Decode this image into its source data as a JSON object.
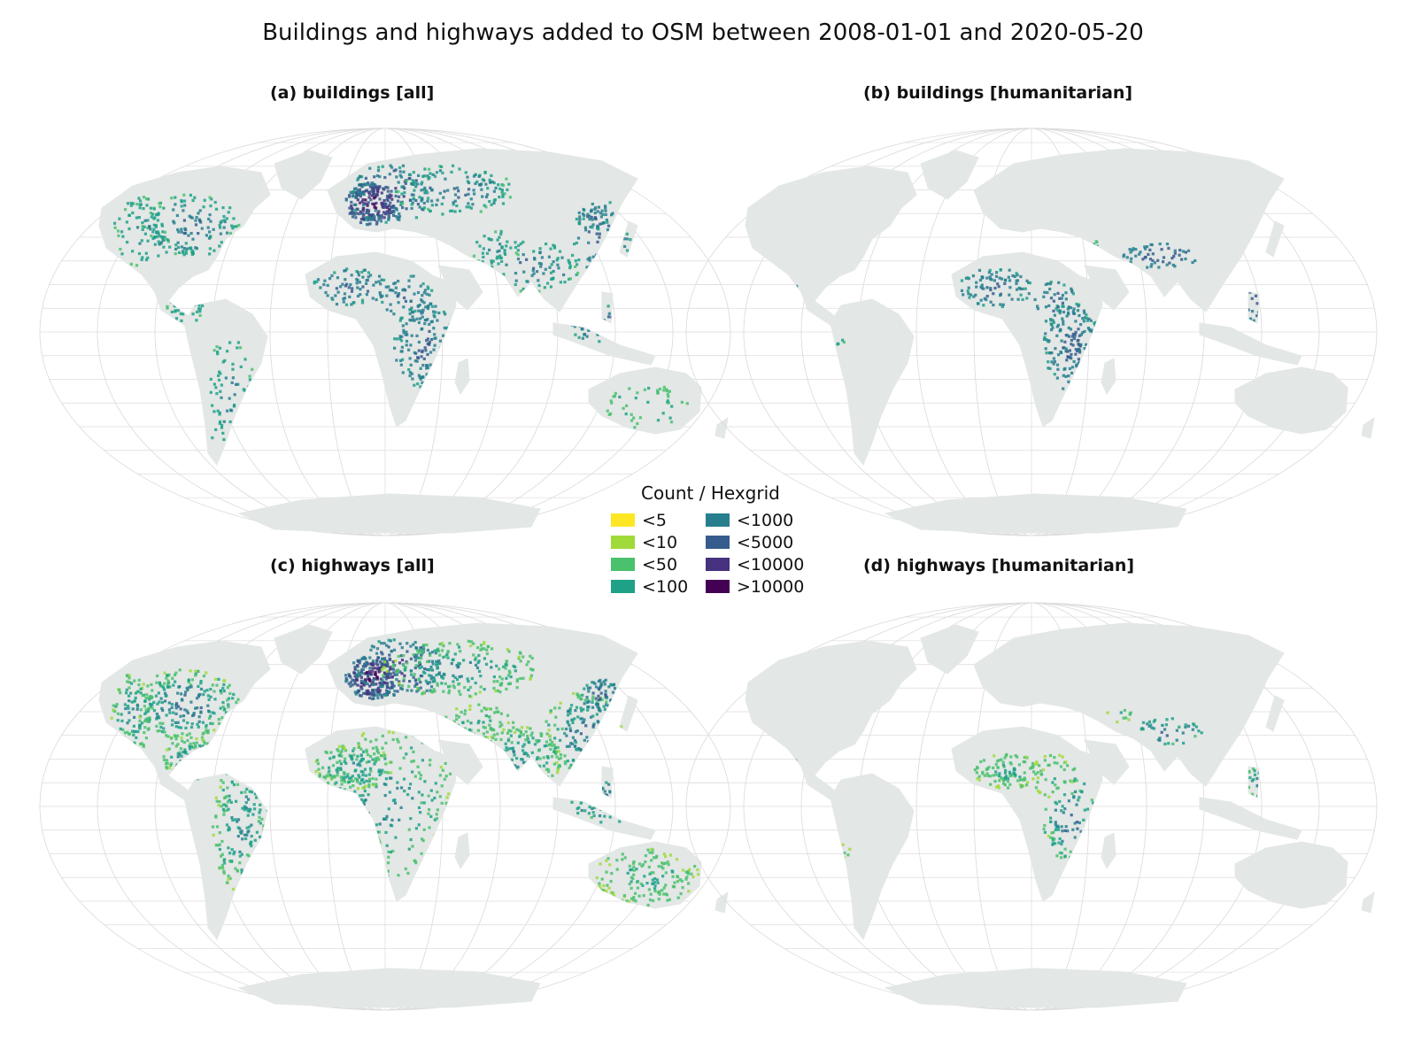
{
  "title": "Buildings and highways added to OSM between 2008-01-01 and 2020-05-20",
  "panels": [
    {
      "id": "a",
      "title": "(a) buildings [all]",
      "layer": "buildings",
      "scope": "all"
    },
    {
      "id": "b",
      "title": "(b) buildings [humanitarian]",
      "layer": "buildings",
      "scope": "humanitarian"
    },
    {
      "id": "c",
      "title": "(c) highways [all]",
      "layer": "highways",
      "scope": "all"
    },
    {
      "id": "d",
      "title": "(d) highways [humanitarian]",
      "layer": "highways",
      "scope": "humanitarian"
    }
  ],
  "legend": {
    "title": "Count / Hexgrid",
    "items": [
      {
        "label": "<5",
        "color": "#fde725"
      },
      {
        "label": "<10",
        "color": "#a0da39"
      },
      {
        "label": "<50",
        "color": "#4ac16d"
      },
      {
        "label": "<100",
        "color": "#1fa187"
      },
      {
        "label": "<1000",
        "color": "#277f8e"
      },
      {
        "label": "<5000",
        "color": "#365c8d"
      },
      {
        "label": "<10000",
        "color": "#46327e"
      },
      {
        "label": ">10000",
        "color": "#440154"
      }
    ]
  },
  "colors": {
    "land": "#e3e7e6",
    "graticule": "#dcdcdc",
    "background": "#ffffff"
  }
}
